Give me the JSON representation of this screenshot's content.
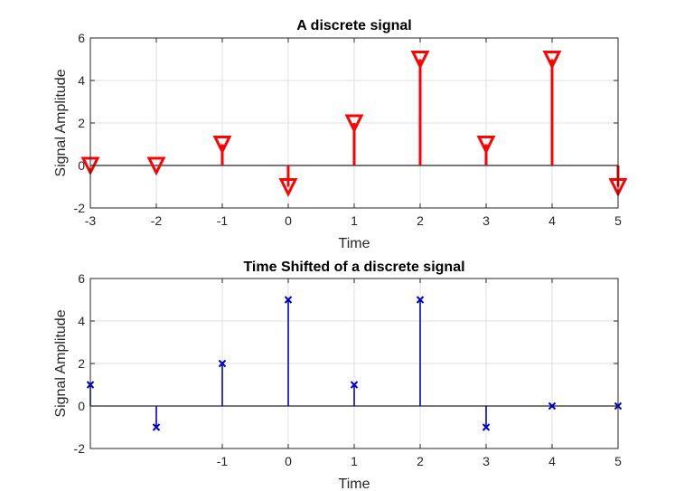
{
  "chart_data": [
    {
      "type": "stem",
      "title": "A discrete signal",
      "xlabel": "Time",
      "ylabel": "Signal Amplitude",
      "xlim": [
        -3,
        5
      ],
      "ylim": [
        -2,
        6
      ],
      "xticks": [
        -3,
        -2,
        -1,
        0,
        1,
        2,
        3,
        4,
        5
      ],
      "xtick_labels": [
        "-3",
        "-2",
        "-1",
        "0",
        "1",
        "2",
        "3",
        "4",
        "5"
      ],
      "yticks": [
        -2,
        0,
        2,
        4,
        6
      ],
      "ytick_labels": [
        "-2",
        "0",
        "2",
        "4",
        "6"
      ],
      "grid": true,
      "series": [
        {
          "x": [
            -3,
            -2,
            -1,
            0,
            1,
            2,
            3,
            4,
            5
          ],
          "y": [
            0,
            0,
            1,
            -1,
            2,
            5,
            1,
            5,
            -1
          ],
          "color": "#ff0000",
          "marker": "triangle-down"
        }
      ]
    },
    {
      "type": "stem",
      "title": "Time Shifted  of a discrete signal",
      "xlabel": "Time",
      "ylabel": "Signal Amplitude",
      "xlim": [
        -3,
        5
      ],
      "ylim": [
        -2,
        6
      ],
      "xticks": [
        -1,
        0,
        1,
        2,
        3,
        4,
        5
      ],
      "xtick_labels": [
        "-1",
        "0",
        "1",
        "2",
        "3",
        "4",
        "5"
      ],
      "yticks": [
        -2,
        0,
        2,
        4,
        6
      ],
      "ytick_labels": [
        "-2",
        "0",
        "2",
        "4",
        "6"
      ],
      "grid": true,
      "series": [
        {
          "x": [
            -3,
            -2,
            -1,
            0,
            1,
            2,
            3,
            4,
            5
          ],
          "y": [
            1,
            -1,
            2,
            5,
            1,
            5,
            -1,
            0,
            0
          ],
          "color": "#0000cc",
          "marker": "x"
        }
      ]
    }
  ]
}
